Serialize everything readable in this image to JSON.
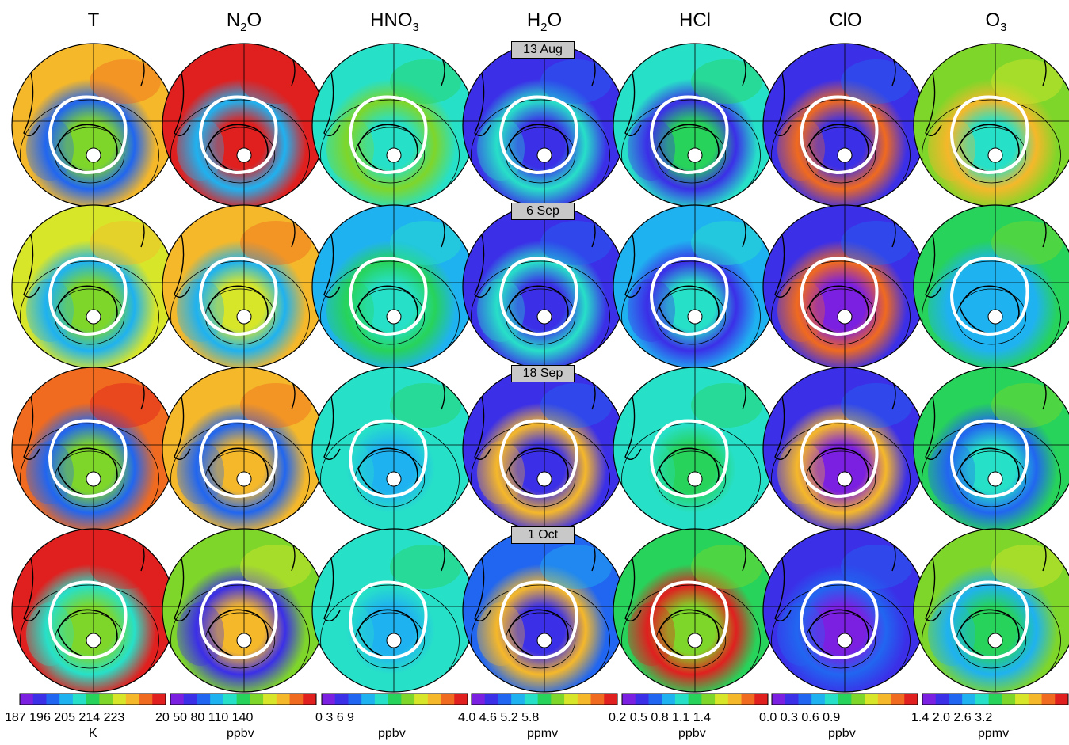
{
  "columns": [
    {
      "id": "T",
      "base": "T",
      "sub": ""
    },
    {
      "id": "N2O",
      "base": "N",
      "sub": "2",
      "rest": "O"
    },
    {
      "id": "HNO3",
      "base": "HNO",
      "sub": "3",
      "rest": ""
    },
    {
      "id": "H2O",
      "base": "H",
      "sub": "2",
      "rest": "O"
    },
    {
      "id": "HCl",
      "base": "HCl",
      "sub": ""
    },
    {
      "id": "ClO",
      "base": "ClO",
      "sub": ""
    },
    {
      "id": "O3",
      "base": "O",
      "sub": "3",
      "rest": ""
    }
  ],
  "dates": [
    "13 Aug",
    "6 Sep",
    "18 Sep",
    "1 Oct"
  ],
  "colorbars": [
    {
      "ticks": "187 196 205 214 223",
      "unit": "K"
    },
    {
      "ticks": "20   50   80  110  140",
      "unit": "ppbv"
    },
    {
      "ticks": "0     3      6      9",
      "unit": "ppbv"
    },
    {
      "ticks": "4.0   4.6   5.2   5.8",
      "unit": "ppmv"
    },
    {
      "ticks": "0.2  0.5  0.8  1.1  1.4",
      "unit": "ppbv"
    },
    {
      "ticks": "0.0   0.3   0.6   0.9",
      "unit": "ppbv"
    },
    {
      "ticks": "1.4  2.0   2.6   3.2",
      "unit": "ppmv"
    }
  ],
  "palette": [
    "#7b1fe0",
    "#3b2fe8",
    "#2166f0",
    "#1fb2f0",
    "#27e0c8",
    "#27d35a",
    "#7fd62a",
    "#d8e62a",
    "#f5b82a",
    "#f06a1f",
    "#e0201f"
  ],
  "panel_levels": [
    [
      [
        0.55,
        0.2,
        0.75
      ],
      [
        0.95,
        0.3,
        0.95
      ],
      [
        0.35,
        0.55,
        0.4
      ],
      [
        0.05,
        0.35,
        0.05
      ],
      [
        0.45,
        0.1,
        0.35
      ],
      [
        0.05,
        0.85,
        0.1
      ],
      [
        0.4,
        0.8,
        0.55
      ]
    ],
    [
      [
        0.55,
        0.25,
        0.7
      ],
      [
        0.7,
        0.3,
        0.75
      ],
      [
        0.35,
        0.45,
        0.3
      ],
      [
        0.05,
        0.4,
        0.08
      ],
      [
        0.4,
        0.1,
        0.3
      ],
      [
        0.02,
        0.9,
        0.05
      ],
      [
        0.25,
        0.25,
        0.45
      ]
    ],
    [
      [
        0.55,
        0.15,
        0.9
      ],
      [
        0.75,
        0.2,
        0.8
      ],
      [
        0.3,
        0.4,
        0.35
      ],
      [
        0.1,
        0.8,
        0.1
      ],
      [
        0.45,
        0.4,
        0.35
      ],
      [
        0.02,
        0.8,
        0.05
      ],
      [
        0.35,
        0.2,
        0.45
      ]
    ],
    [
      [
        0.55,
        0.35,
        0.95
      ],
      [
        0.8,
        0.05,
        0.6
      ],
      [
        0.3,
        0.35,
        0.35
      ],
      [
        0.1,
        0.8,
        0.2
      ],
      [
        0.6,
        0.98,
        0.45
      ],
      [
        0.02,
        0.2,
        0.05
      ],
      [
        0.45,
        0.25,
        0.6
      ]
    ]
  ]
}
